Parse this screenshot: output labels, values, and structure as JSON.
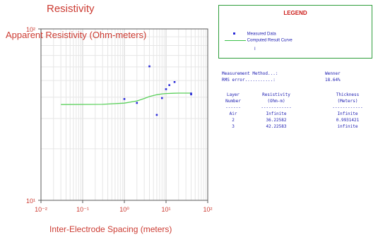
{
  "chart_data": {
    "type": "scatter",
    "title": "Resistivity",
    "ylabel": "Apparent Resistivity (Ohm-meters)",
    "xlabel": "Inter-Electrode Spacing (meters)",
    "x_scale": "log",
    "y_scale": "log",
    "xlim": [
      0.01,
      100
    ],
    "ylim": [
      10,
      100
    ],
    "x_ticks": [
      {
        "value": 0.01,
        "label": "10⁻²"
      },
      {
        "value": 0.1,
        "label": "10⁻¹"
      },
      {
        "value": 1,
        "label": "10⁰"
      },
      {
        "value": 10,
        "label": "10¹"
      },
      {
        "value": 100,
        "label": "10²"
      }
    ],
    "y_ticks": [
      {
        "value": 10,
        "label": "10¹"
      },
      {
        "value": 100,
        "label": "10²"
      }
    ],
    "grid": true,
    "series": [
      {
        "name": "Measured Data",
        "kind": "points",
        "x": [
          1.0,
          2.0,
          4.0,
          6.0,
          8.0,
          10.0,
          12.0,
          16.0,
          40.0,
          40.0
        ],
        "y": [
          39.0,
          37.0,
          60.5,
          31.5,
          39.5,
          44.5,
          47.0,
          49.0,
          42.0,
          41.5
        ]
      },
      {
        "name": "Computed Result Curve",
        "kind": "line",
        "x": [
          0.03,
          0.3,
          1.0,
          2.0,
          3.0,
          4.0,
          6.0,
          8.0,
          10.0,
          15.0,
          20.0,
          40.0
        ],
        "y": [
          36.22,
          36.3,
          36.9,
          38.0,
          39.3,
          40.3,
          41.3,
          41.8,
          42.0,
          42.15,
          42.2,
          42.23
        ]
      }
    ]
  },
  "legend": {
    "title": "LEGEND",
    "entries": [
      "Measured Data",
      "Computed Result Curve"
    ],
    "cursor": "I"
  },
  "info": {
    "method_label": "Measurement Method...:",
    "method_value": "Wenner",
    "rms_label": "RMS error...........:",
    "rms_value": "18.64%"
  },
  "layer_table": {
    "headers": [
      [
        "Layer",
        "Number"
      ],
      [
        "Resistivity",
        "(Ohm-m)"
      ],
      [
        "Thickness",
        "(Meters)"
      ]
    ],
    "separator": [
      "------",
      "------------",
      "------------"
    ],
    "rows": [
      [
        "Air",
        "Infinite",
        "Infinite"
      ],
      [
        "2",
        "36.22582",
        "0.9931421"
      ],
      [
        "3",
        "42.22583",
        "infinite"
      ]
    ]
  },
  "colors": {
    "title_text": "#cc3b32",
    "points": "#2a2ad8",
    "curve": "#5ad05a",
    "table_text": "#1a1ab0",
    "legend_border": "#2e9e3a"
  }
}
